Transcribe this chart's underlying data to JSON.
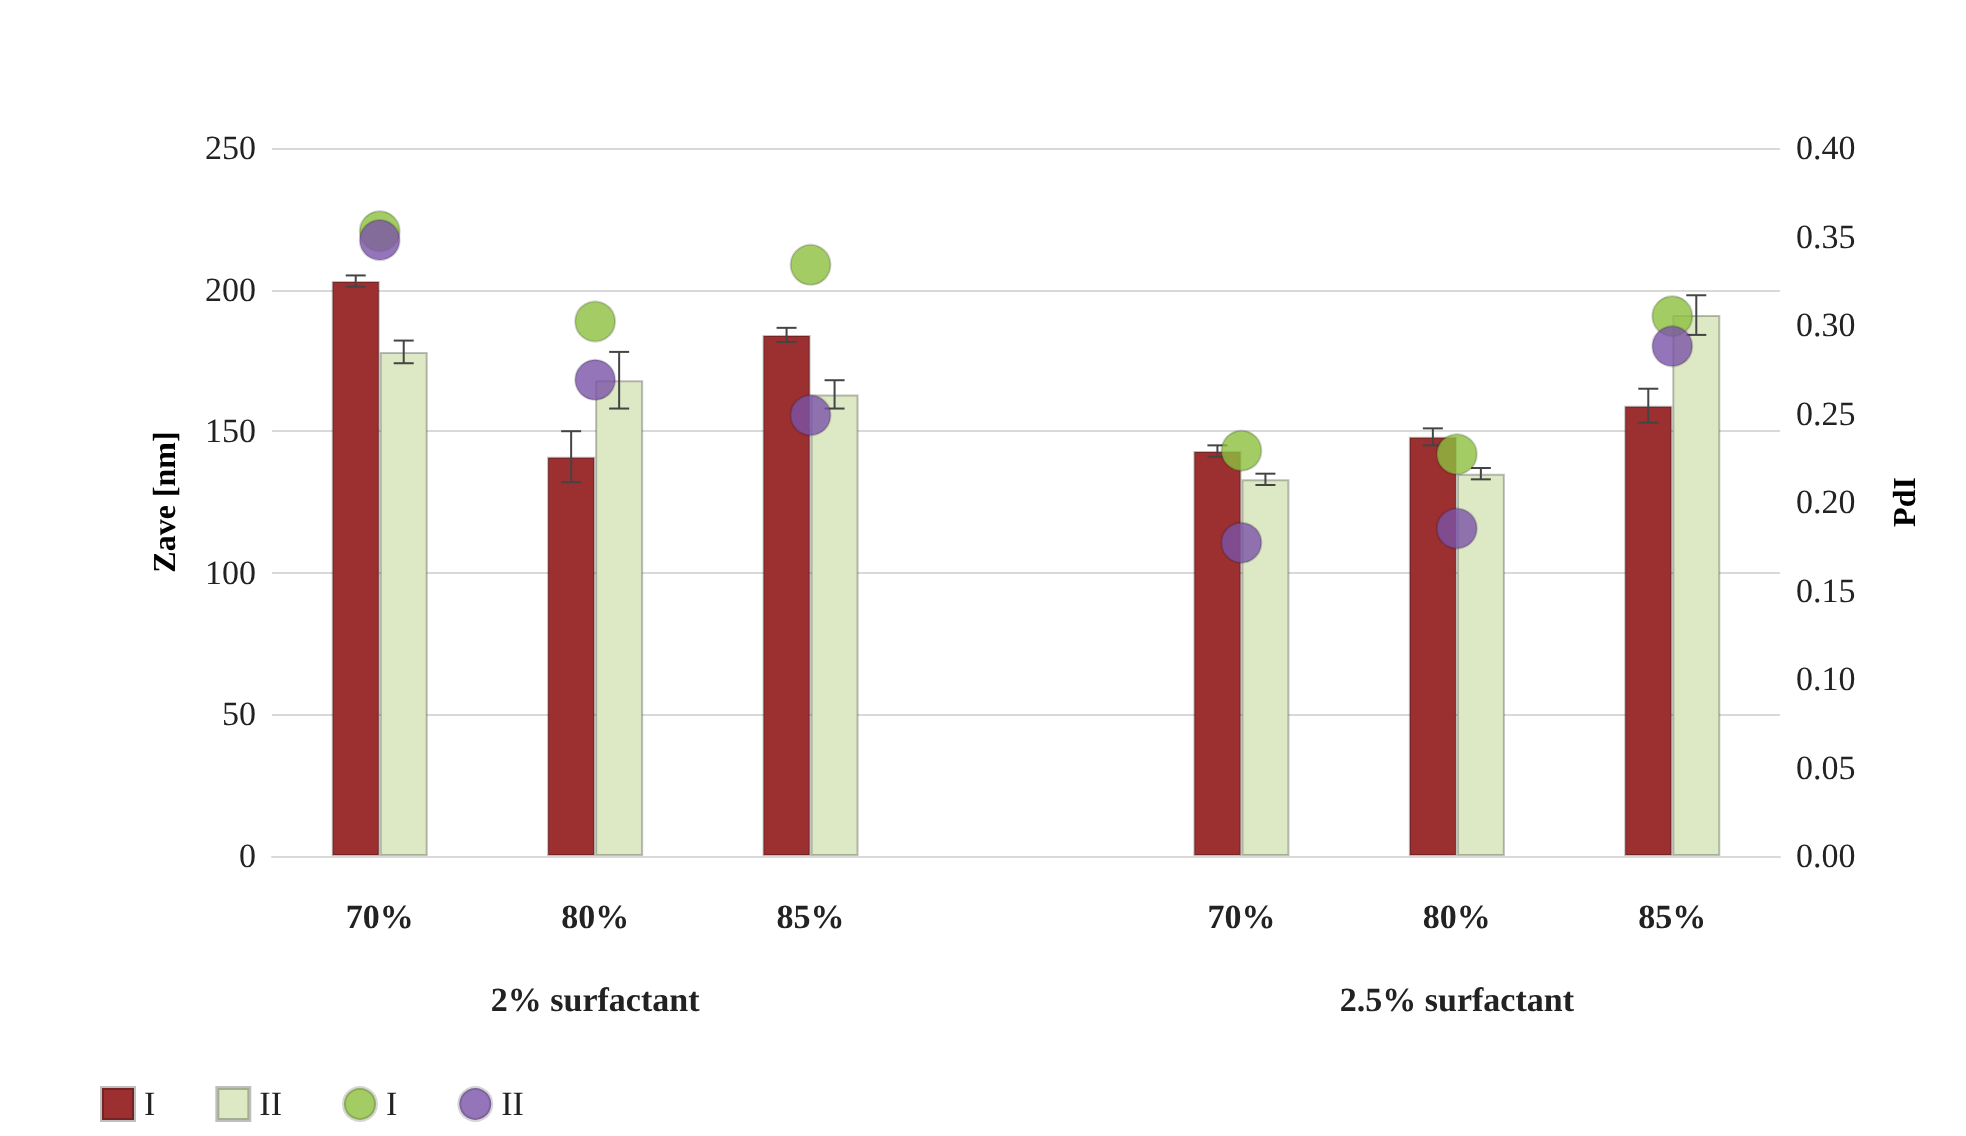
{
  "chart_data": {
    "type": "bar",
    "categories": [
      "70%",
      "80%",
      "85%",
      null,
      "70%",
      "80%",
      "85%"
    ],
    "annotations": [
      "2% surfactant",
      "2.5% surfactant"
    ],
    "ylabel": "Zave [nm]",
    "y2label": "PdI",
    "ylim": [
      0,
      250
    ],
    "yticks": [
      0,
      50,
      100,
      150,
      200,
      250
    ],
    "y2lim": [
      0,
      0.4
    ],
    "y2ticks": [
      {
        "value": 0,
        "label": "0.00"
      },
      {
        "value": 0.05,
        "label": "0.05"
      },
      {
        "value": 0.1,
        "label": "0.10"
      },
      {
        "value": 0.15,
        "label": "0.15"
      },
      {
        "value": 0.2,
        "label": "0.20"
      },
      {
        "value": 0.25,
        "label": "0.25"
      },
      {
        "value": 0.3,
        "label": "0.30"
      },
      {
        "value": 0.35,
        "label": "0.35"
      },
      {
        "value": 0.4,
        "label": "0.40"
      }
    ],
    "grid": "y",
    "legend": "bottom left",
    "series": [
      {
        "name": "I",
        "color": "#9c3030",
        "values": [
          203,
          141,
          184,
          null,
          143,
          148,
          159
        ],
        "errors": [
          2,
          9,
          2.5,
          null,
          2,
          3,
          6
        ]
      },
      {
        "name": "II",
        "color": "#dde8c4",
        "values": [
          178,
          168,
          163,
          null,
          133,
          135,
          191
        ],
        "errors": [
          4,
          10,
          5,
          null,
          2,
          2,
          7
        ]
      },
      {
        "name": "I",
        "type": "scatter",
        "axis": "y2",
        "marker": "circle",
        "color": "#8cbf3f",
        "values": [
          0.353,
          0.302,
          0.334,
          null,
          0.229,
          0.227,
          0.305
        ]
      },
      {
        "name": "II",
        "type": "scatter",
        "axis": "y2",
        "marker": "circle",
        "color": "#7b52a8",
        "values": [
          0.348,
          0.269,
          0.249,
          null,
          0.177,
          0.185,
          0.288
        ]
      }
    ]
  }
}
